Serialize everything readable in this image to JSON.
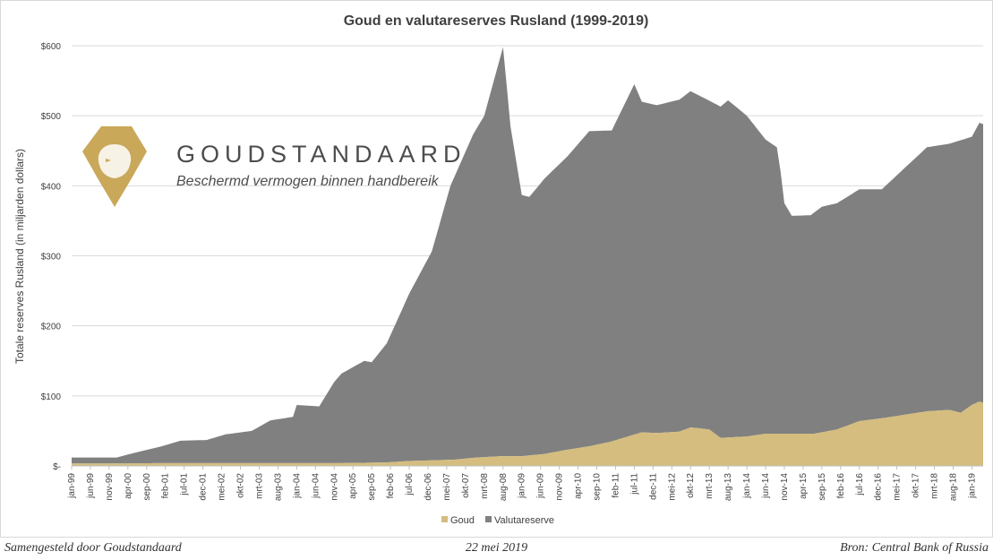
{
  "chart_data": {
    "type": "area",
    "stacked": true,
    "title": "Goud en valutareserves Rusland (1999-2019)",
    "ylabel": "Totale reserves Rusland (in miljarden dollars)",
    "ylim": [
      0,
      600
    ],
    "yticks": [
      0,
      100,
      200,
      300,
      400,
      500,
      600
    ],
    "ytick_labels": [
      "$-",
      "$100",
      "$200",
      "$300",
      "$400",
      "$500",
      "$600"
    ],
    "grid": true,
    "legend_placement": "bottom",
    "x_start": "jan-99",
    "x_end": "apr-19",
    "x_tick_labels": [
      "jan-99",
      "jun-99",
      "nov-99",
      "apr-00",
      "sep-00",
      "feb-01",
      "jul-01",
      "dec-01",
      "mei-02",
      "okt-02",
      "mrt-03",
      "aug-03",
      "jan-04",
      "jun-04",
      "nov-04",
      "apr-05",
      "sep-05",
      "feb-06",
      "jul-06",
      "dec-06",
      "mei-07",
      "okt-07",
      "mrt-08",
      "aug-08",
      "jan-09",
      "jun-09",
      "nov-09",
      "apr-10",
      "sep-10",
      "feb-11",
      "jul-11",
      "dec-11",
      "mei-12",
      "okt-12",
      "mrt-13",
      "aug-13",
      "jan-14",
      "jun-14",
      "nov-14",
      "apr-15",
      "sep-15",
      "feb-16",
      "jul-16",
      "dec-16",
      "mei-17",
      "okt-17",
      "mrt-18",
      "aug-18",
      "jan-19"
    ],
    "series": [
      {
        "name": "Goud",
        "color": "#d4bd7f",
        "points": [
          [
            "jan-99",
            3.5
          ],
          [
            "jan-00",
            3.5
          ],
          [
            "jan-01",
            4
          ],
          [
            "jan-02",
            4
          ],
          [
            "jan-03",
            4
          ],
          [
            "jan-04",
            4
          ],
          [
            "jan-05",
            4
          ],
          [
            "jan-06",
            5
          ],
          [
            "jul-06",
            7
          ],
          [
            "jan-07",
            8
          ],
          [
            "jul-07",
            9
          ],
          [
            "jan-08",
            12
          ],
          [
            "aug-08",
            14
          ],
          [
            "jan-09",
            14
          ],
          [
            "jul-09",
            17
          ],
          [
            "jan-10",
            23
          ],
          [
            "jul-10",
            28
          ],
          [
            "jan-11",
            35
          ],
          [
            "sep-11",
            48
          ],
          [
            "jan-12",
            47
          ],
          [
            "jul-12",
            49
          ],
          [
            "okt-12",
            55
          ],
          [
            "mrt-13",
            52
          ],
          [
            "jun-13",
            40
          ],
          [
            "jan-14",
            42
          ],
          [
            "jun-14",
            46
          ],
          [
            "jan-15",
            46
          ],
          [
            "jul-15",
            46
          ],
          [
            "jan-16",
            52
          ],
          [
            "jul-16",
            64
          ],
          [
            "jan-17",
            68
          ],
          [
            "jan-18",
            78
          ],
          [
            "jul-18",
            80
          ],
          [
            "okt-18",
            76
          ],
          [
            "jan-19",
            87
          ],
          [
            "mrt-19",
            92
          ],
          [
            "apr-19",
            90
          ]
        ]
      },
      {
        "name": "Valutareserve",
        "color": "#808080",
        "total_points": [
          [
            "jan-99",
            12
          ],
          [
            "jun-99",
            12
          ],
          [
            "jan-00",
            12
          ],
          [
            "jun-00",
            19
          ],
          [
            "jan-01",
            28
          ],
          [
            "jun-01",
            36
          ],
          [
            "jan-02",
            37
          ],
          [
            "jun-02",
            45
          ],
          [
            "jan-03",
            50
          ],
          [
            "jun-03",
            65
          ],
          [
            "dec-03",
            70
          ],
          [
            "jan-04",
            87
          ],
          [
            "jul-04",
            85
          ],
          [
            "nov-04",
            120
          ],
          [
            "jan-05",
            132
          ],
          [
            "jul-05",
            150
          ],
          [
            "sep-05",
            148
          ],
          [
            "jan-06",
            175
          ],
          [
            "jul-06",
            246
          ],
          [
            "jan-07",
            306
          ],
          [
            "jun-07",
            400
          ],
          [
            "dec-07",
            473
          ],
          [
            "mrt-08",
            500
          ],
          [
            "aug-08",
            598
          ],
          [
            "okt-08",
            485
          ],
          [
            "jan-09",
            387
          ],
          [
            "mrt-09",
            384
          ],
          [
            "jul-09",
            410
          ],
          [
            "jan-10",
            441
          ],
          [
            "jul-10",
            478
          ],
          [
            "jan-11",
            479
          ],
          [
            "jul-11",
            545
          ],
          [
            "sep-11",
            520
          ],
          [
            "jan-12",
            515
          ],
          [
            "jul-12",
            523
          ],
          [
            "okt-12",
            535
          ],
          [
            "jan-13",
            527
          ],
          [
            "jun-13",
            513
          ],
          [
            "aug-13",
            522
          ],
          [
            "jan-14",
            500
          ],
          [
            "jun-14",
            466
          ],
          [
            "sep-14",
            455
          ],
          [
            "okt-14",
            420
          ],
          [
            "nov-14",
            375
          ],
          [
            "jan-15",
            357
          ],
          [
            "jun-15",
            358
          ],
          [
            "sep-15",
            370
          ],
          [
            "jan-16",
            375
          ],
          [
            "jul-16",
            395
          ],
          [
            "jan-17",
            395
          ],
          [
            "jul-17",
            425
          ],
          [
            "jan-18",
            455
          ],
          [
            "jul-18",
            460
          ],
          [
            "jan-19",
            470
          ],
          [
            "mrt-19",
            490
          ],
          [
            "apr-19",
            488
          ]
        ]
      }
    ]
  },
  "branding": {
    "name": "GOUDSTANDAARD",
    "tagline": "Beschermd vermogen binnen handbereik",
    "logo_color": "#c9a85a"
  },
  "footer": {
    "left": "Samengesteld door Goudstandaard",
    "center": "22 mei 2019",
    "right": "Bron: Central Bank of Russia"
  }
}
